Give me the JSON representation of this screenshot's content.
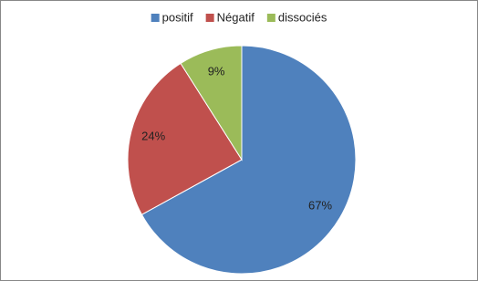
{
  "chart_data": {
    "type": "pie",
    "categories": [
      "positif",
      "Négatif",
      "dissociés"
    ],
    "values": [
      67,
      24,
      9
    ],
    "value_labels": [
      "67%",
      "24%",
      "9%"
    ],
    "colors": [
      "#4f81bd",
      "#c0504d",
      "#9bbb59"
    ],
    "legend": "top"
  }
}
